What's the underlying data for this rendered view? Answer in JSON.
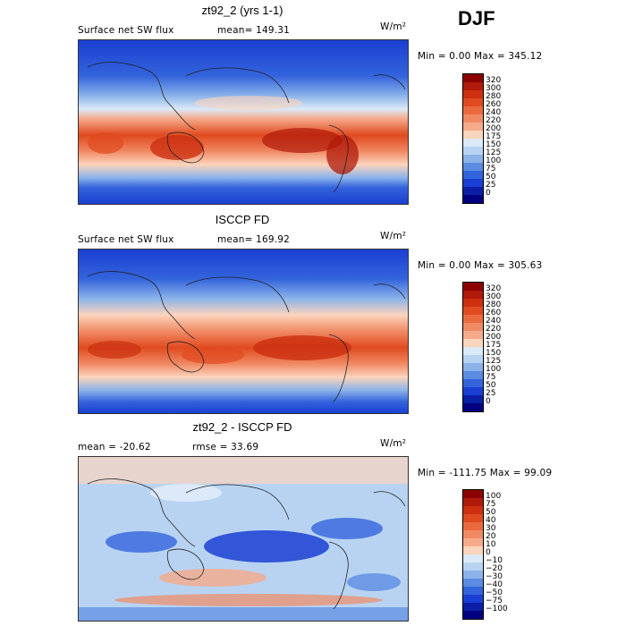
{
  "season": "DJF",
  "panels": [
    {
      "id": "model",
      "title": "zt92_2 (yrs 1-1)",
      "variable": "Surface net SW flux",
      "stat": "mean= 149.31",
      "stat2": "",
      "units": "W/m²",
      "minmax": "Min =    0.00 Max = 345.12",
      "colorbar": {
        "labels": [
          "320",
          "300",
          "280",
          "260",
          "240",
          "220",
          "200",
          "175",
          "150",
          "125",
          "100",
          "75",
          "50",
          "25",
          "0"
        ],
        "colors": [
          "#8b0000",
          "#b01a0a",
          "#cc3010",
          "#e04a20",
          "#ea6a40",
          "#f08a64",
          "#f5aa8a",
          "#fbd4bd",
          "#dce9f8",
          "#b8d3f2",
          "#8bb3ea",
          "#5b8ce2",
          "#3464dc",
          "#1a3fd2",
          "#0a1ea6",
          "#000080"
        ]
      }
    },
    {
      "id": "obs",
      "title": "ISCCP FD",
      "variable": "Surface net SW flux",
      "stat": "mean= 169.92",
      "stat2": "",
      "units": "W/m²",
      "minmax": "Min =    0.00 Max = 305.63",
      "colorbar": {
        "labels": [
          "320",
          "300",
          "280",
          "260",
          "240",
          "220",
          "200",
          "175",
          "150",
          "125",
          "100",
          "75",
          "50",
          "25",
          "0"
        ],
        "colors": [
          "#8b0000",
          "#b01a0a",
          "#cc3010",
          "#e04a20",
          "#ea6a40",
          "#f08a64",
          "#f5aa8a",
          "#fbd4bd",
          "#dce9f8",
          "#b8d3f2",
          "#8bb3ea",
          "#5b8ce2",
          "#3464dc",
          "#1a3fd2",
          "#0a1ea6",
          "#000080"
        ]
      }
    },
    {
      "id": "diff",
      "title": "zt92_2 - ISCCP FD",
      "variable": "",
      "stat": "mean = -20.62",
      "stat2": "rmse =  33.69",
      "units": "W/m²",
      "minmax": "Min = -111.75 Max =  99.09",
      "colorbar": {
        "labels": [
          "100",
          "75",
          "50",
          "40",
          "30",
          "20",
          "10",
          "0",
          "−10",
          "−20",
          "−30",
          "−40",
          "−50",
          "−75",
          "−100"
        ],
        "colors": [
          "#8b0000",
          "#b01a0a",
          "#cc3010",
          "#e04a20",
          "#ea6a40",
          "#f08a64",
          "#f5aa8a",
          "#fbd4bd",
          "#dce9f8",
          "#b8d3f2",
          "#8bb3ea",
          "#5b8ce2",
          "#3464dc",
          "#1a3fd2",
          "#0a1ea6",
          "#000080"
        ]
      }
    }
  ],
  "chart_data": {
    "type": "heatmap",
    "description_of_fields": "Global lat-lon contour maps of surface net shortwave flux (DJF)",
    "fields": [
      {
        "panel": "zt92_2 (yrs 1-1)",
        "mean": 149.31,
        "min": 0.0,
        "max": 345.12,
        "units": "W/m²"
      },
      {
        "panel": "ISCCP FD",
        "mean": 169.92,
        "min": 0.0,
        "max": 305.63,
        "units": "W/m²"
      },
      {
        "panel": "zt92_2 - ISCCP FD",
        "mean": -20.62,
        "rmse": 33.69,
        "min": -111.75,
        "max": 99.09,
        "units": "W/m²"
      }
    ],
    "colorbar_levels_abs": [
      0,
      25,
      50,
      75,
      100,
      125,
      150,
      175,
      200,
      220,
      240,
      260,
      280,
      300,
      320
    ],
    "colorbar_levels_diff": [
      -100,
      -75,
      -50,
      -40,
      -30,
      -20,
      -10,
      0,
      10,
      20,
      30,
      40,
      50,
      75,
      100
    ]
  }
}
